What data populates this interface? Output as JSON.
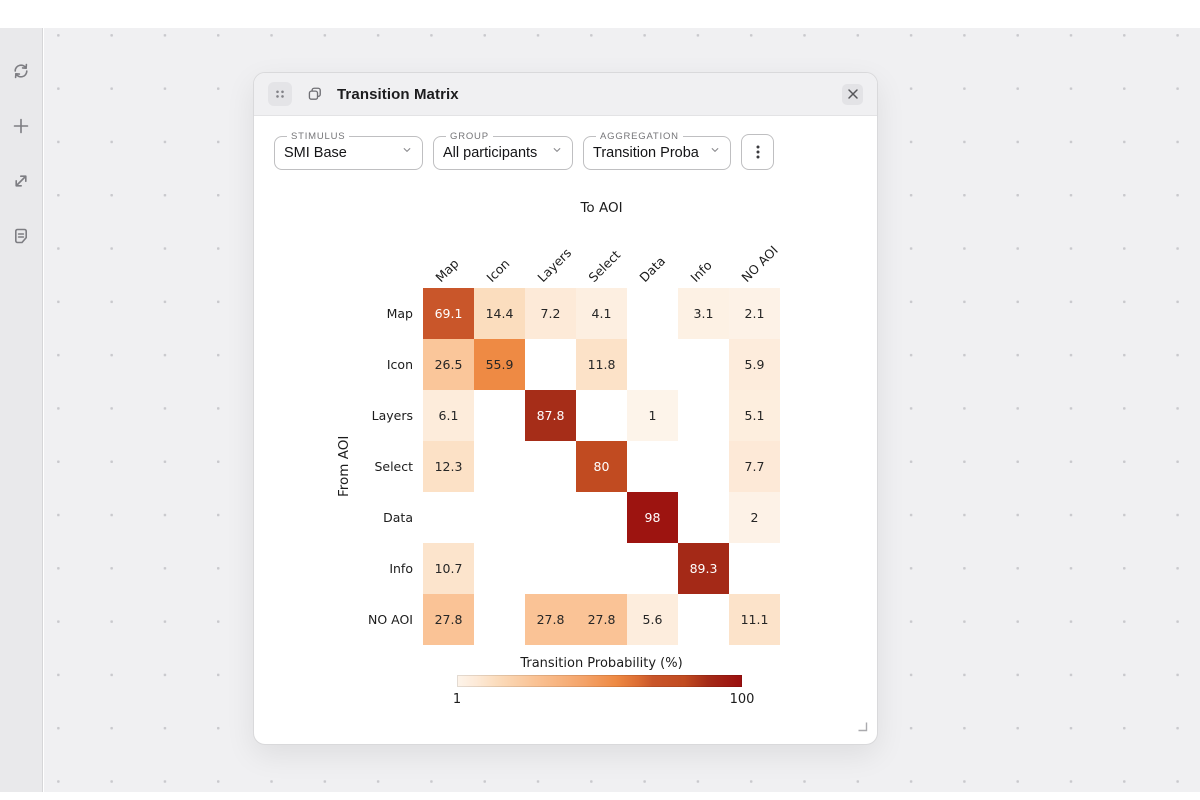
{
  "sidebar": {
    "icons": [
      "refresh-icon",
      "plus-icon",
      "expand-icon",
      "document-icon"
    ]
  },
  "panel": {
    "title": "Transition Matrix",
    "controls": {
      "stimulus": {
        "label": "STIMULUS",
        "value": "SMI Base"
      },
      "group": {
        "label": "GROUP",
        "value": "All participants"
      },
      "aggregation": {
        "label": "AGGREGATION",
        "value": "Transition Proba"
      }
    }
  },
  "chart_data": {
    "type": "heatmap",
    "title_top": "To AOI",
    "title_left": "From AOI",
    "columns": [
      "Map",
      "Icon",
      "Layers",
      "Select",
      "Data",
      "Info",
      "NO AOI"
    ],
    "row_names": [
      "Map",
      "Icon",
      "Layers",
      "Select",
      "Data",
      "Info",
      "NO AOI"
    ],
    "values": [
      [
        69.1,
        14.4,
        7.2,
        4.1,
        null,
        3.1,
        2.1
      ],
      [
        26.5,
        55.9,
        null,
        11.8,
        null,
        null,
        5.9
      ],
      [
        6.1,
        null,
        87.8,
        null,
        1,
        null,
        5.1
      ],
      [
        12.3,
        null,
        null,
        80,
        null,
        null,
        7.7
      ],
      [
        null,
        null,
        null,
        null,
        98,
        null,
        2
      ],
      [
        10.7,
        null,
        null,
        null,
        null,
        89.3,
        null
      ],
      [
        27.8,
        null,
        27.8,
        27.8,
        5.6,
        null,
        11.1
      ]
    ],
    "legend": {
      "title": "Transition Probability (%)",
      "min": 1,
      "max": 100
    },
    "color_stops": [
      [
        1,
        "#fdf4ea"
      ],
      [
        8,
        "#fde9d6"
      ],
      [
        15,
        "#fbdcbc"
      ],
      [
        28,
        "#fac395"
      ],
      [
        45,
        "#f4a369"
      ],
      [
        56,
        "#ee8a44"
      ],
      [
        64,
        "#dc6d33"
      ],
      [
        69,
        "#c9562a"
      ],
      [
        80,
        "#c14b21"
      ],
      [
        88,
        "#a52c18"
      ],
      [
        94,
        "#a01d13"
      ],
      [
        100,
        "#9b0f0f"
      ]
    ],
    "white_text_threshold": 60,
    "empty_color": "#ffffff"
  }
}
